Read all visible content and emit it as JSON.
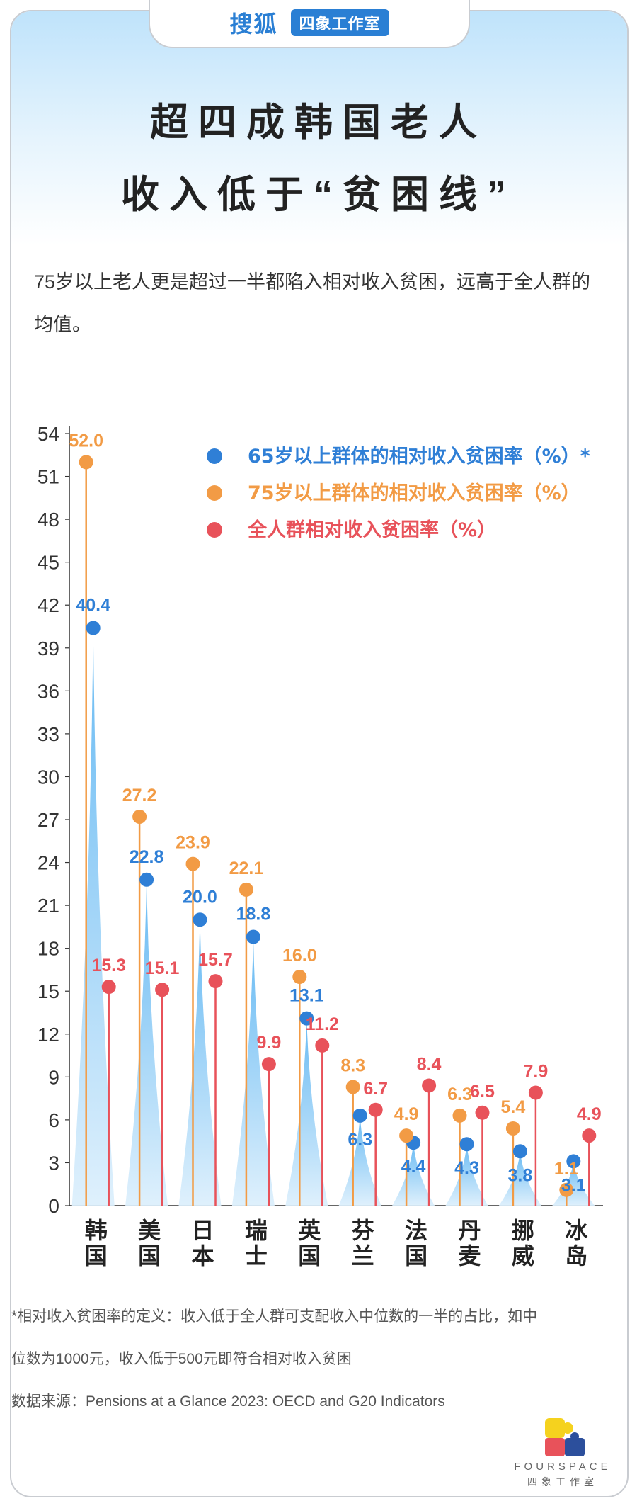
{
  "header": {
    "brand": "搜狐",
    "tag": "四象工作室"
  },
  "title_line1": "超四成韩国老人",
  "title_line2": "收入低于“贫困线”",
  "subtitle": "75岁以上老人更是超过一半都陷入相对收入贫困，远高于全人群的均值。",
  "colors": {
    "blue": "#2f7fd6",
    "orange": "#f29b45",
    "red": "#e8525a",
    "spike_top": "#5ab4f2",
    "spike_bottom": "#dceffc"
  },
  "chart_data": {
    "type": "scatter",
    "categories": [
      "韩国",
      "美国",
      "日本",
      "瑞士",
      "英国",
      "芬兰",
      "法国",
      "丹麦",
      "挪威",
      "冰岛"
    ],
    "ylim": [
      0,
      54
    ],
    "yticks": [
      0,
      3,
      6,
      9,
      12,
      15,
      18,
      21,
      24,
      27,
      30,
      33,
      36,
      39,
      42,
      45,
      48,
      51,
      54
    ],
    "legend_position": "top-right",
    "series": [
      {
        "name": "65岁以上群体的相对收入贫困率（%）*",
        "values": [
          40.4,
          22.8,
          20.0,
          18.8,
          13.1,
          6.3,
          4.4,
          4.3,
          3.8,
          3.1
        ]
      },
      {
        "name": "75岁以上群体的相对收入贫困率（%）",
        "values": [
          52.0,
          27.2,
          23.9,
          22.1,
          16.0,
          8.3,
          4.9,
          6.3,
          5.4,
          1.1
        ]
      },
      {
        "name": "全人群相对收入贫困率（%）",
        "values": [
          15.3,
          15.1,
          15.7,
          9.9,
          11.2,
          6.7,
          8.4,
          6.5,
          7.9,
          4.9
        ]
      }
    ]
  },
  "footnotes": {
    "line1": "*相对收入贫困率的定义：收入低于全人群可支配收入中位数的一半的占比，如中",
    "line2": "位数为1000元，收入低于500元即符合相对收入贫困",
    "source": "数据来源：Pensions at a Glance 2023: OECD and G20 Indicators"
  },
  "logo": {
    "name": "FOURSPACE",
    "sub": "四象工作室"
  }
}
